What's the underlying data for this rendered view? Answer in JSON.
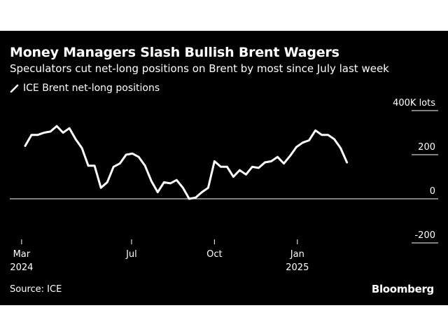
{
  "title": "Money Managers Slash Bullish Brent Wagers",
  "subtitle": "Speculators cut net-long positions on Brent by most since July last week",
  "legend": {
    "label": "ICE Brent net-long positions",
    "color": "#ffffff"
  },
  "source": "Source: ICE",
  "brand": "Bloomberg",
  "colors": {
    "background": "#000000",
    "line": "#ffffff",
    "text": "#ffffff"
  },
  "chart_data": {
    "type": "line",
    "title": "Money Managers Slash Bullish Brent Wagers",
    "subtitle": "Speculators cut net-long positions on Brent by most since July last week",
    "xlabel": "",
    "ylabel": "",
    "y_unit": "400K lots",
    "ylim": [
      -200000,
      400000
    ],
    "y_ticks": [
      {
        "value": 400000,
        "label": "400K lots"
      },
      {
        "value": 200000,
        "label": "200"
      },
      {
        "value": 0,
        "label": "0"
      },
      {
        "value": -200000,
        "label": "-200"
      }
    ],
    "x_ticks": [
      {
        "date": "2024-03-01",
        "label": "Mar",
        "sublabel": "2024"
      },
      {
        "date": "2024-07-01",
        "label": "Jul",
        "sublabel": ""
      },
      {
        "date": "2024-10-01",
        "label": "Oct",
        "sublabel": ""
      },
      {
        "date": "2025-01-01",
        "label": "Jan",
        "sublabel": "2025"
      }
    ],
    "x_range": [
      "2024-02-20",
      "2025-04-30"
    ],
    "grid": false,
    "legend_position": "top-left",
    "series": [
      {
        "name": "ICE Brent net-long positions",
        "color": "#ffffff",
        "x": [
          "2024-03-05",
          "2024-03-12",
          "2024-03-19",
          "2024-03-26",
          "2024-04-02",
          "2024-04-09",
          "2024-04-16",
          "2024-04-23",
          "2024-04-30",
          "2024-05-07",
          "2024-05-14",
          "2024-05-21",
          "2024-05-28",
          "2024-06-04",
          "2024-06-11",
          "2024-06-18",
          "2024-06-25",
          "2024-07-02",
          "2024-07-09",
          "2024-07-16",
          "2024-07-23",
          "2024-07-30",
          "2024-08-06",
          "2024-08-13",
          "2024-08-20",
          "2024-08-27",
          "2024-09-03",
          "2024-09-10",
          "2024-09-17",
          "2024-09-24",
          "2024-10-01",
          "2024-10-08",
          "2024-10-15",
          "2024-10-22",
          "2024-10-29",
          "2024-11-05",
          "2024-11-12",
          "2024-11-19",
          "2024-11-26",
          "2024-12-03",
          "2024-12-10",
          "2024-12-17",
          "2024-12-24",
          "2024-12-31",
          "2025-01-07",
          "2025-01-14",
          "2025-01-21",
          "2025-01-28",
          "2025-02-04",
          "2025-02-11",
          "2025-02-18",
          "2025-02-25",
          "2025-03-04",
          "2025-03-11",
          "2025-03-18"
        ],
        "values": [
          240000,
          290000,
          290000,
          300000,
          305000,
          330000,
          300000,
          320000,
          270000,
          230000,
          150000,
          150000,
          50000,
          75000,
          145000,
          160000,
          200000,
          205000,
          190000,
          150000,
          80000,
          30000,
          75000,
          70000,
          85000,
          50000,
          0,
          5000,
          30000,
          50000,
          170000,
          145000,
          145000,
          100000,
          130000,
          110000,
          145000,
          140000,
          165000,
          170000,
          190000,
          160000,
          195000,
          235000,
          255000,
          265000,
          310000,
          290000,
          290000,
          270000,
          230000,
          165000,
          null,
          null,
          null
        ]
      }
    ]
  }
}
